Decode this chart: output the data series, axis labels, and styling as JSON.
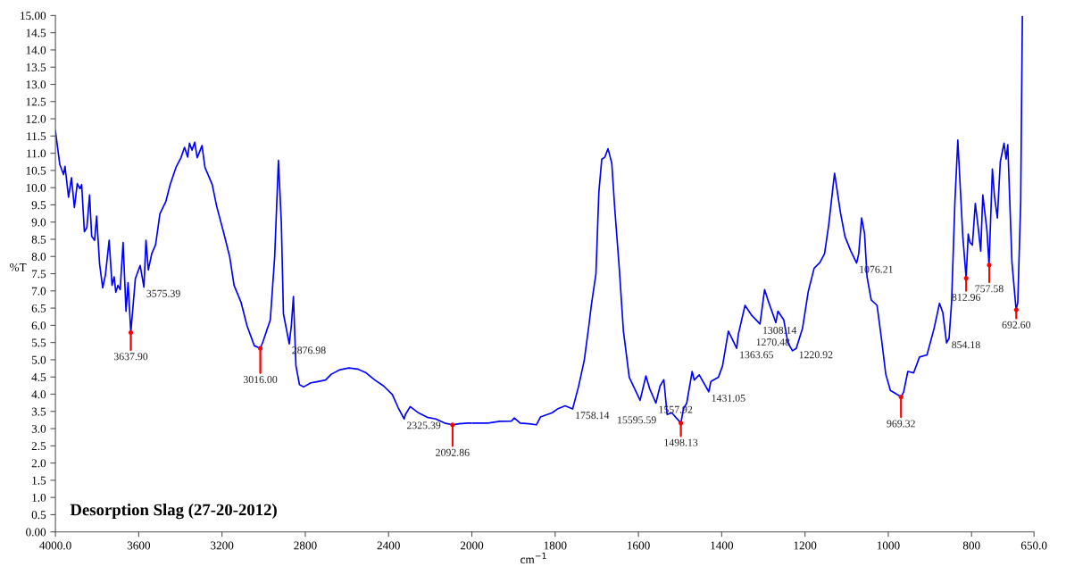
{
  "chart_data": [
    {
      "type": "line",
      "title": "Desorption Slag (27-20-2012)",
      "ylabel": "%T",
      "xlim": [
        4000,
        2000
      ],
      "xticks": [
        {
          "value": 4000,
          "label": "4000.0"
        },
        3600,
        3200,
        2800,
        2400,
        2000
      ],
      "ylim": [
        0,
        15
      ],
      "yticks": [
        {
          "value": 0,
          "label": "0.00"
        },
        0.5,
        {
          "value": 1,
          "label": "1.0"
        },
        1.5,
        {
          "value": 2,
          "label": "2.0"
        },
        2.5,
        {
          "value": 3,
          "label": "3.0"
        },
        3.5,
        {
          "value": 4,
          "label": "4.0"
        },
        4.5,
        {
          "value": 5,
          "label": "5.0"
        },
        5.5,
        {
          "value": 6,
          "label": "6.0"
        },
        6.5,
        {
          "value": 7,
          "label": "7.0"
        },
        7.5,
        {
          "value": 8,
          "label": "8.0"
        },
        8.5,
        {
          "value": 9,
          "label": "9.0"
        },
        9.5,
        {
          "value": 10,
          "label": "10.0"
        },
        10.5,
        {
          "value": 11,
          "label": "11.0"
        },
        11.5,
        {
          "value": 12,
          "label": "12.0"
        },
        12.5,
        {
          "value": 13,
          "label": "13.0"
        },
        13.5,
        {
          "value": 14,
          "label": "14.0"
        },
        14.5,
        {
          "value": 15,
          "label": "15.00"
        }
      ],
      "series": [
        {
          "color": "#0000ff",
          "x": [
            4000,
            3979,
            3961,
            3954,
            3937,
            3923,
            3909,
            3895,
            3882,
            3874,
            3861,
            3849,
            3836,
            3826,
            3812,
            3802,
            3788,
            3773,
            3760,
            3742,
            3728,
            3718,
            3710,
            3700,
            3689,
            3675,
            3661,
            3651,
            3638,
            3616,
            3593,
            3575,
            3565,
            3554,
            3537,
            3519,
            3498,
            3470,
            3449,
            3421,
            3397,
            3380,
            3365,
            3356,
            3344,
            3331,
            3319,
            3296,
            3282,
            3247,
            3226,
            3191,
            3163,
            3142,
            3108,
            3080,
            3045,
            3016,
            3003,
            2968,
            2947,
            2929,
            2915,
            2905,
            2877,
            2867,
            2857,
            2845,
            2828,
            2808,
            2773,
            2745,
            2703,
            2675,
            2633,
            2591,
            2549,
            2508,
            2466,
            2424,
            2382,
            2354,
            2325,
            2319,
            2296,
            2257,
            2215,
            2173,
            2131,
            2093,
            2062,
            2020,
            2000
          ],
          "values": [
            11.65,
            10.67,
            10.38,
            10.62,
            9.72,
            10.29,
            9.42,
            10.12,
            9.97,
            10.09,
            8.72,
            8.84,
            9.79,
            8.59,
            8.47,
            9.17,
            7.79,
            7.09,
            7.46,
            8.47,
            7.16,
            7.41,
            6.96,
            7.16,
            7.04,
            8.41,
            6.41,
            7.24,
            5.79,
            7.36,
            7.74,
            7.11,
            8.47,
            7.61,
            8.09,
            8.34,
            9.24,
            9.59,
            10.09,
            10.59,
            10.87,
            11.17,
            10.89,
            11.29,
            11.09,
            11.32,
            10.87,
            11.22,
            10.59,
            10.09,
            9.47,
            8.67,
            7.99,
            7.16,
            6.66,
            5.99,
            5.41,
            5.33,
            5.53,
            6.16,
            7.99,
            10.79,
            8.99,
            6.34,
            5.46,
            5.99,
            6.84,
            4.83,
            4.28,
            4.21,
            4.33,
            4.36,
            4.41,
            4.58,
            4.71,
            4.76,
            4.73,
            4.62,
            4.41,
            4.24,
            3.99,
            3.61,
            3.28,
            3.41,
            3.64,
            3.46,
            3.33,
            3.28,
            3.16,
            3.11,
            3.14,
            3.16,
            3.16
          ]
        },
        {
          "type": "scatter",
          "color": "#ff0000",
          "marker": "circle",
          "x": [
            3637.9,
            3016.0,
            2092.86
          ],
          "values": [
            5.79,
            5.33,
            3.11
          ],
          "errors": [
            [
              5.28,
              5.79
            ],
            [
              4.61,
              5.33
            ],
            [
              2.49,
              3.11
            ]
          ]
        }
      ],
      "annotations": [
        {
          "text": "3637.90",
          "x": 3637.9,
          "y": 5.79
        },
        {
          "text": "3575.39",
          "x": 3575.39,
          "y": 7.11
        },
        {
          "text": "3016.00",
          "x": 3016.0,
          "y": 5.33
        },
        {
          "text": "2876.98",
          "x": 2876.98,
          "y": 5.46
        },
        {
          "text": "2325.39",
          "x": 2325.39,
          "y": 3.28
        },
        {
          "text": "2092.86",
          "x": 2092.86,
          "y": 3.11
        }
      ]
    },
    {
      "type": "line",
      "xlabel": "cm$^{−1}$",
      "tick_labels": "x",
      "xlim": [
        2000,
        650
      ],
      "xticks": [
        1800,
        1600,
        1400,
        1200,
        1000,
        800,
        {
          "value": 650,
          "label": "650.0"
        }
      ],
      "ylim": [
        0,
        15
      ],
      "series": [
        {
          "color": "#0000ff",
          "x": [
            2000,
            1989,
            1961,
            1933,
            1905,
            1898,
            1884,
            1863,
            1845,
            1835,
            1807,
            1793,
            1776,
            1758,
            1744,
            1730,
            1719,
            1713,
            1702,
            1695,
            1688,
            1681,
            1673,
            1664,
            1657,
            1646,
            1636,
            1622,
            1596,
            1582,
            1573,
            1558,
            1548,
            1539,
            1531,
            1520,
            1498,
            1492,
            1484,
            1471,
            1466,
            1454,
            1431,
            1426,
            1408,
            1398,
            1384,
            1364,
            1360,
            1344,
            1328,
            1308,
            1297,
            1288,
            1270,
            1265,
            1251,
            1241,
            1230,
            1221,
            1206,
            1192,
            1178,
            1164,
            1153,
            1143,
            1129,
            1115,
            1104,
            1090,
            1076,
            1071,
            1064,
            1057,
            1051,
            1041,
            1027,
            1016,
            1006,
            995,
            969,
            963,
            953,
            939,
            925,
            907,
            890,
            877,
            869,
            860,
            854,
            848,
            840,
            833,
            826,
            821,
            813,
            808,
            804,
            798,
            791,
            784,
            778,
            773,
            763,
            758,
            750,
            745,
            738,
            731,
            722,
            717,
            713,
            703,
            693,
            689,
            682,
            678
          ],
          "values": [
            3.16,
            3.16,
            3.16,
            3.21,
            3.22,
            3.31,
            3.16,
            3.14,
            3.11,
            3.34,
            3.46,
            3.58,
            3.66,
            3.57,
            4.21,
            4.99,
            5.99,
            6.59,
            7.5,
            9.87,
            10.83,
            10.88,
            11.13,
            10.71,
            9.42,
            7.66,
            5.83,
            4.49,
            3.82,
            4.53,
            4.16,
            3.74,
            4.24,
            4.42,
            3.41,
            3.46,
            3.16,
            3.57,
            3.74,
            4.66,
            4.41,
            4.56,
            4.07,
            4.37,
            4.49,
            4.82,
            5.83,
            5.33,
            5.74,
            6.58,
            6.29,
            6.04,
            7.04,
            6.7,
            6.08,
            6.41,
            6.16,
            5.49,
            5.26,
            5.33,
            5.91,
            6.99,
            7.66,
            7.83,
            8.08,
            8.92,
            10.42,
            9.29,
            8.58,
            8.16,
            7.81,
            8.08,
            9.12,
            8.67,
            7.41,
            6.74,
            6.58,
            5.58,
            4.58,
            4.11,
            3.92,
            4.07,
            4.66,
            4.62,
            5.08,
            5.14,
            5.91,
            6.64,
            6.37,
            5.49,
            5.62,
            6.66,
            9.58,
            11.38,
            9.75,
            8.58,
            7.37,
            8.65,
            8.41,
            8.33,
            9.54,
            8.83,
            8.16,
            9.79,
            8.75,
            7.75,
            10.54,
            9.75,
            9.12,
            10.75,
            11.29,
            10.83,
            11.25,
            7.83,
            6.45,
            6.66,
            9.58,
            14.97
          ]
        },
        {
          "type": "scatter",
          "color": "#ff0000",
          "marker": "circle",
          "x": [
            1498.13,
            969.32,
            812.96,
            757.58,
            692.6
          ],
          "values": [
            3.16,
            3.92,
            7.37,
            7.75,
            6.45
          ],
          "errors": [
            [
              2.78,
              3.16
            ],
            [
              3.33,
              3.92
            ],
            [
              7.0,
              7.37
            ],
            [
              7.25,
              7.75
            ],
            [
              6.2,
              6.45
            ]
          ]
        }
      ],
      "annotations": [
        {
          "text": "1758.14",
          "x": 1758.14,
          "y": 3.57
        },
        {
          "text": "1557.92",
          "x": 1557.92,
          "y": 3.74
        },
        {
          "text": "15595.59",
          "x": 1595.59,
          "y": 3.82
        },
        {
          "text": "1498.13",
          "x": 1498.13,
          "y": 3.16
        },
        {
          "text": "1431.05",
          "x": 1431.05,
          "y": 4.07
        },
        {
          "text": "1363.65",
          "x": 1363.65,
          "y": 5.33
        },
        {
          "text": "1308.14",
          "x": 1308.14,
          "y": 6.04
        },
        {
          "text": "1270.48",
          "x": 1270.48,
          "y": 6.08
        },
        {
          "text": "1220.92",
          "x": 1220.92,
          "y": 5.33
        },
        {
          "text": "1076.21",
          "x": 1076.21,
          "y": 7.81
        },
        {
          "text": "969.32",
          "x": 969.32,
          "y": 3.92
        },
        {
          "text": "854.18",
          "x": 854.18,
          "y": 5.62
        },
        {
          "text": "812.96",
          "x": 812.96,
          "y": 7.37
        },
        {
          "text": "757.58",
          "x": 757.58,
          "y": 7.75
        },
        {
          "text": "692.60",
          "x": 692.6,
          "y": 6.45
        }
      ]
    }
  ]
}
